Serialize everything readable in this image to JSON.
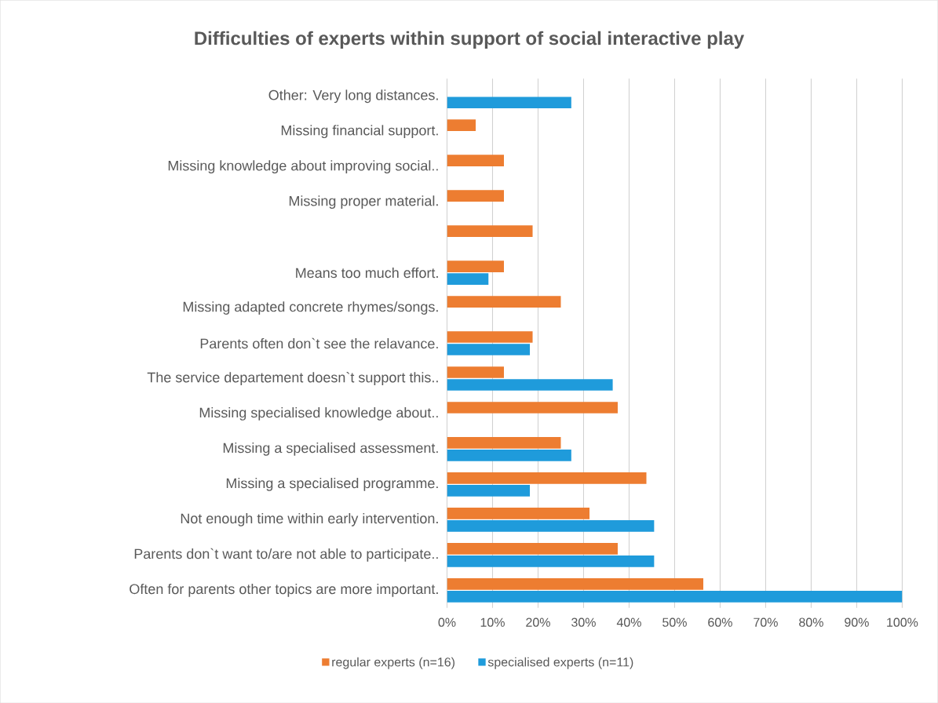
{
  "chart_data": {
    "type": "bar",
    "orientation": "horizontal",
    "title": "Difficulties of experts within support of social interactive play",
    "categories": [
      "Other: Very long distances.",
      "Missing financial support.",
      "Missing knowledge about improving social..",
      "Missing proper material.",
      null,
      "Means too much effort.",
      "Missing adapted concrete rhymes/songs.",
      "Parents often don`t see the relavance.",
      "The service departement doesn`t support this..",
      "Missing specialised knowledge about..",
      "Missing a specialised assessment.",
      "Missing a specialised programme.",
      "Not enough time within early intervention.",
      "Parents don`t want to/are not able to participate..",
      "Often for parents other topics are more important."
    ],
    "series": [
      {
        "name": "regular experts (n=16)",
        "color": "#ed7d31",
        "values": [
          null,
          6.3,
          12.5,
          12.5,
          18.8,
          12.5,
          25,
          18.8,
          12.5,
          37.5,
          25,
          43.8,
          31.3,
          37.5,
          56.3
        ]
      },
      {
        "name": "specialised experts (n=11)",
        "color": "#1f9bdb",
        "values": [
          27.3,
          null,
          null,
          null,
          null,
          9.1,
          null,
          18.2,
          36.4,
          null,
          27.3,
          18.2,
          45.5,
          45.5,
          100
        ]
      }
    ],
    "xlim": [
      0,
      100
    ],
    "xticks": [
      {
        "value": 0,
        "label": "0%"
      },
      {
        "value": 10,
        "label": "10%"
      },
      {
        "value": 20,
        "label": "20%"
      },
      {
        "value": 30,
        "label": "30%"
      },
      {
        "value": 40,
        "label": "40%"
      },
      {
        "value": 50,
        "label": "50%"
      },
      {
        "value": 60,
        "label": "60%"
      },
      {
        "value": 70,
        "label": "70%"
      },
      {
        "value": 80,
        "label": "80%"
      },
      {
        "value": 90,
        "label": "90%"
      },
      {
        "value": 100,
        "label": "100%"
      }
    ],
    "grid": "x",
    "legend": "bottom"
  }
}
